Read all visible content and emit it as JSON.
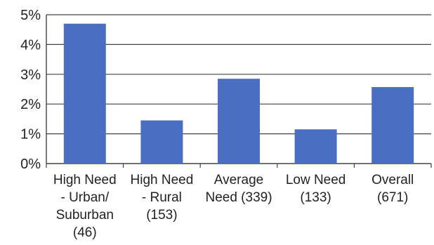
{
  "chart_data": {
    "type": "bar",
    "categories": [
      [
        "High Need",
        "- Urban/",
        "Suburban",
        "(46)"
      ],
      [
        "High Need",
        "- Rural",
        "(153)"
      ],
      [
        "Average",
        "Need (339)"
      ],
      [
        "Low Need",
        "(133)"
      ],
      [
        "Overall",
        "(671)"
      ]
    ],
    "values": [
      4.7,
      1.45,
      2.85,
      1.15,
      2.57
    ],
    "ylim": [
      0,
      5
    ],
    "yticks": [
      0,
      1,
      2,
      3,
      4,
      5
    ],
    "ytick_labels": [
      "0%",
      "1%",
      "2%",
      "3%",
      "4%",
      "5%"
    ],
    "title": "",
    "xlabel": "",
    "ylabel": "",
    "grid": true,
    "legend": "none",
    "colors": {
      "bar": "#4a6fc2",
      "grid": "#444444",
      "axis": "#444444"
    }
  }
}
